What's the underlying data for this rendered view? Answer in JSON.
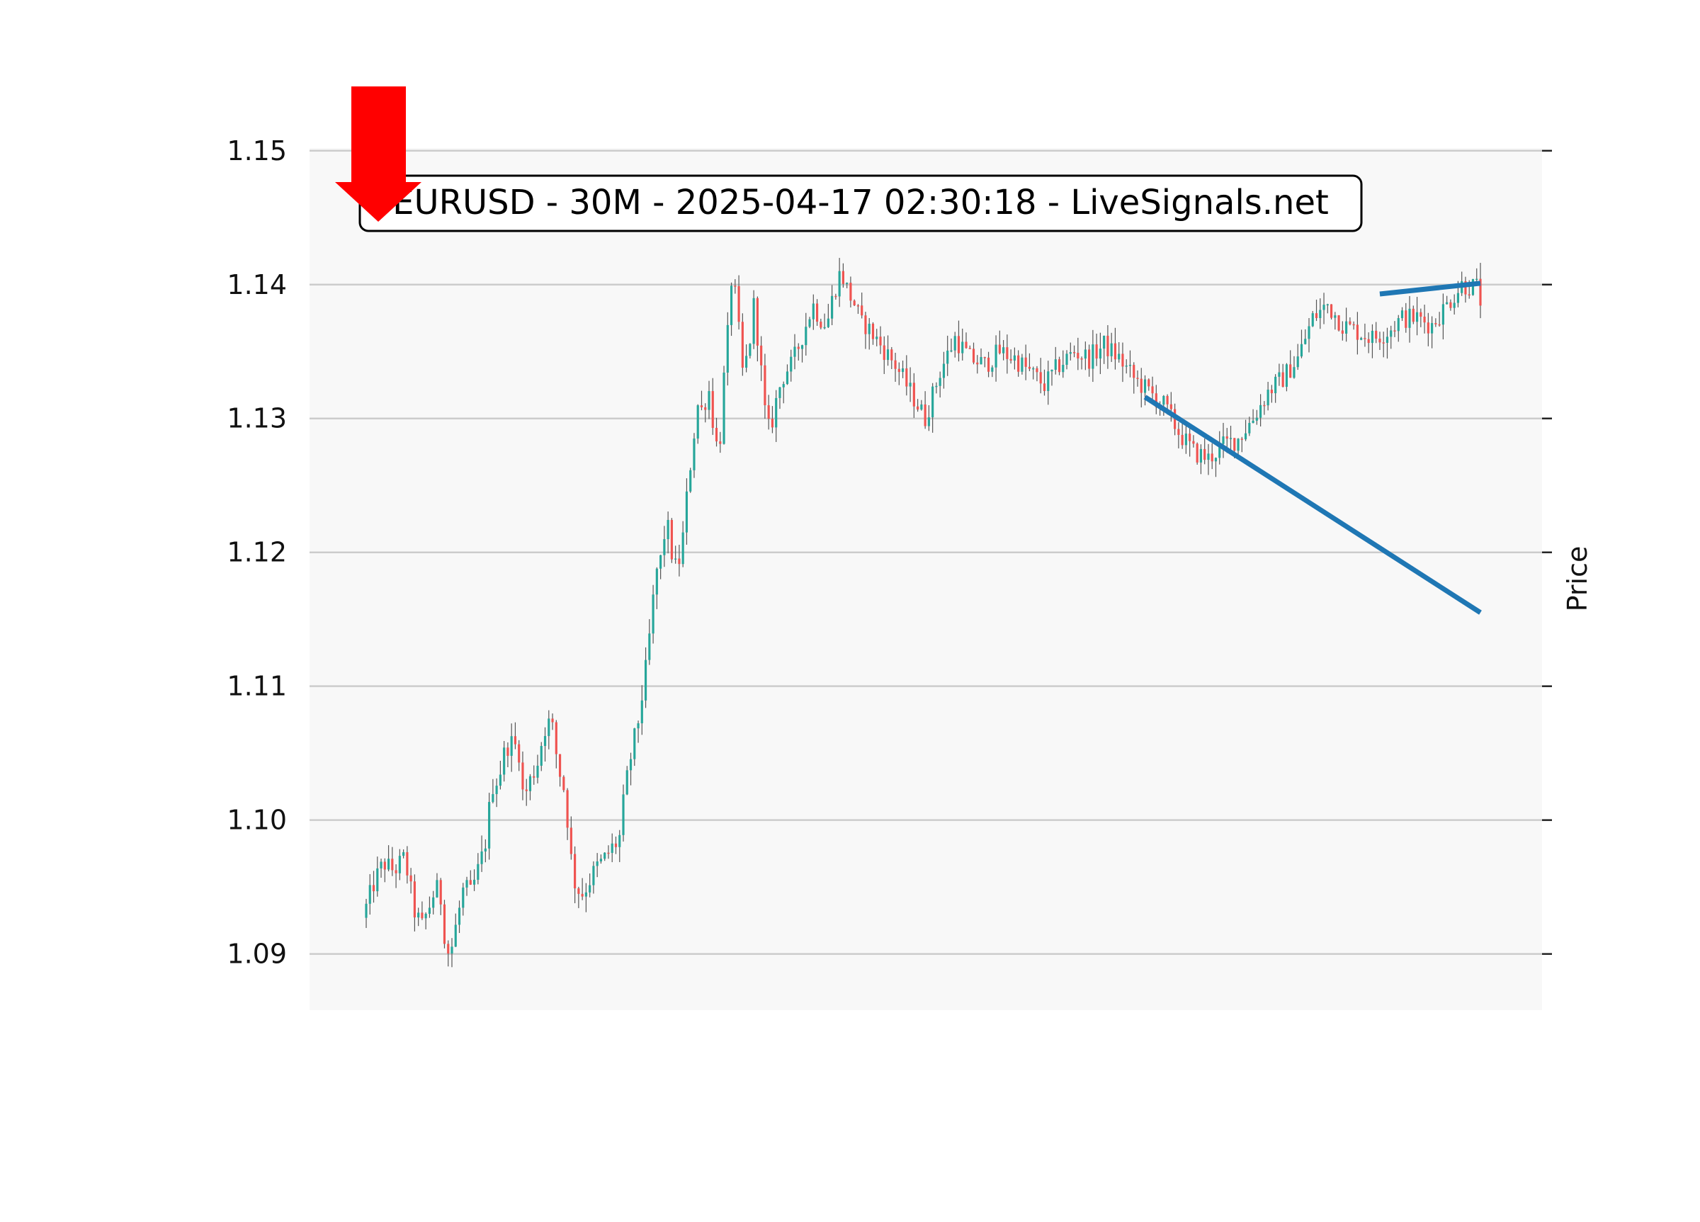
{
  "chart_data": {
    "type": "candlestick",
    "title": "EURUSD - 30M - 2025-04-17 02:30:18 - LiveSignals.net",
    "ylabel": "Price",
    "xlabel": "",
    "ylim": [
      1.0858,
      1.1502
    ],
    "yticks": [
      1.09,
      1.1,
      1.11,
      1.12,
      1.13,
      1.14,
      1.15
    ],
    "ytick_labels": [
      "1.09",
      "1.10",
      "1.11",
      "1.12",
      "1.13",
      "1.14",
      "1.15"
    ],
    "grid": "horizontal",
    "x_axis_shown": false,
    "bar_count": 300,
    "colors": {
      "background": "#f8f8f8",
      "grid": "#cccccc",
      "up": "#26a69a",
      "down": "#ef5350",
      "wick": "#555555",
      "trendline": "#1f77b4",
      "signal_arrow": "#ff0000"
    },
    "signal": {
      "direction": "sell",
      "icon": "down-arrow-icon"
    },
    "close_path": [
      [
        0,
        1.0935
      ],
      [
        5,
        1.0955
      ],
      [
        10,
        1.0968
      ],
      [
        16,
        1.0962
      ],
      [
        22,
        1.0972
      ],
      [
        28,
        1.093
      ],
      [
        32,
        1.0921
      ],
      [
        36,
        1.0935
      ],
      [
        40,
        1.095
      ],
      [
        43,
        1.094
      ],
      [
        46,
        1.09
      ],
      [
        49,
        1.0905
      ],
      [
        52,
        1.0925
      ],
      [
        56,
        1.095
      ],
      [
        60,
        1.0945
      ],
      [
        64,
        1.0962
      ],
      [
        68,
        1.098
      ],
      [
        72,
        1.1025
      ],
      [
        76,
        1.1032
      ],
      [
        80,
        1.1055
      ],
      [
        84,
        1.1058
      ],
      [
        88,
        1.105
      ],
      [
        90,
        1.1015
      ],
      [
        94,
        1.103
      ],
      [
        98,
        1.1042
      ],
      [
        102,
        1.1068
      ],
      [
        106,
        1.1075
      ],
      [
        110,
        1.104
      ],
      [
        114,
        1.102
      ],
      [
        117,
        1.0975
      ],
      [
        120,
        1.095
      ],
      [
        124,
        1.0945
      ],
      [
        128,
        1.0955
      ],
      [
        132,
        1.0965
      ],
      [
        136,
        1.097
      ],
      [
        140,
        1.0978
      ],
      [
        145,
        1.0985
      ],
      [
        148,
        1.102
      ],
      [
        152,
        1.105
      ],
      [
        156,
        1.1075
      ],
      [
        160,
        1.111
      ],
      [
        163,
        1.1145
      ],
      [
        166,
        1.1185
      ],
      [
        169,
        1.1195
      ],
      [
        172,
        1.1225
      ],
      [
        175,
        1.12
      ],
      [
        178,
        1.1185
      ],
      [
        181,
        1.1205
      ],
      [
        184,
        1.1245
      ],
      [
        187,
        1.128
      ],
      [
        190,
        1.131
      ],
      [
        193,
        1.1305
      ],
      [
        196,
        1.1325
      ],
      [
        199,
        1.1295
      ],
      [
        202,
        1.127
      ],
      [
        205,
        1.133
      ],
      [
        208,
        1.1375
      ],
      [
        210,
        1.142
      ],
      [
        212,
        1.138
      ],
      [
        214,
        1.136
      ],
      [
        216,
        1.133
      ],
      [
        218,
        1.1345
      ],
      [
        220,
        1.136
      ],
      [
        222,
        1.1385
      ],
      [
        224,
        1.1365
      ],
      [
        226,
        1.134
      ],
      [
        228,
        1.131
      ],
      [
        230,
        1.129
      ],
      [
        233,
        1.13
      ],
      [
        236,
        1.132
      ],
      [
        240,
        1.1335
      ],
      [
        244,
        1.134
      ],
      [
        248,
        1.1355
      ],
      [
        252,
        1.137
      ],
      [
        256,
        1.1385
      ],
      [
        260,
        1.1375
      ],
      [
        264,
        1.137
      ],
      [
        268,
        1.1395
      ],
      [
        272,
        1.141
      ],
      [
        276,
        1.1395
      ],
      [
        280,
        1.1385
      ],
      [
        284,
        1.137
      ]
    ],
    "close_path_late": [
      [
        0,
        1.137
      ],
      [
        4,
        1.1355
      ],
      [
        8,
        1.134
      ],
      [
        12,
        1.132
      ],
      [
        16,
        1.13
      ],
      [
        20,
        1.1335
      ],
      [
        24,
        1.136
      ],
      [
        28,
        1.1345
      ],
      [
        32,
        1.134
      ],
      [
        36,
        1.135
      ],
      [
        40,
        1.1345
      ],
      [
        44,
        1.1335
      ],
      [
        48,
        1.1325
      ],
      [
        52,
        1.134
      ],
      [
        56,
        1.135
      ],
      [
        60,
        1.1345
      ],
      [
        64,
        1.1355
      ],
      [
        68,
        1.1345
      ],
      [
        72,
        1.133
      ],
      [
        76,
        1.132
      ],
      [
        80,
        1.131
      ],
      [
        84,
        1.129
      ],
      [
        88,
        1.1275
      ],
      [
        92,
        1.127
      ],
      [
        96,
        1.128
      ],
      [
        100,
        1.1285
      ],
      [
        104,
        1.13
      ],
      [
        108,
        1.132
      ],
      [
        112,
        1.133
      ],
      [
        116,
        1.1345
      ],
      [
        120,
        1.1375
      ],
      [
        124,
        1.1385
      ],
      [
        128,
        1.137
      ],
      [
        132,
        1.1365
      ],
      [
        136,
        1.136
      ],
      [
        140,
        1.1365
      ],
      [
        144,
        1.1375
      ],
      [
        148,
        1.1375
      ],
      [
        152,
        1.137
      ],
      [
        156,
        1.1385
      ],
      [
        160,
        1.14
      ],
      [
        164,
        1.1398
      ],
      [
        166,
        1.138
      ]
    ],
    "trendlines": [
      {
        "name": "support-line",
        "x": [
          209,
          299
        ],
        "y": [
          1.1316,
          1.1155
        ]
      },
      {
        "name": "resistance-line",
        "x": [
          272,
          299
        ],
        "y": [
          1.1393,
          1.1401
        ]
      }
    ]
  }
}
